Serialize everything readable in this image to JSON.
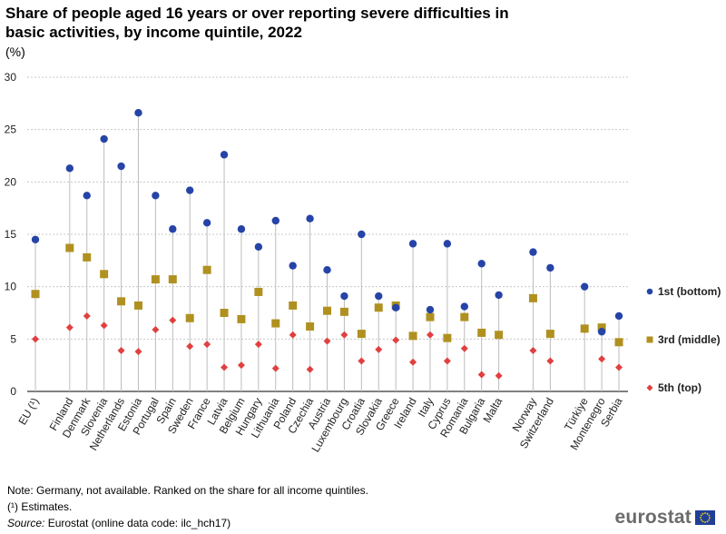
{
  "header": {
    "title": "Share of people aged 16 years or over reporting severe difficulties in basic activities, by income quintile, 2022",
    "unit": "(%)"
  },
  "footer": {
    "note": "Note: Germany, not available. Ranked on the share for all income quintiles.",
    "estimates": "(¹) Estimates.",
    "source_label": "Source:",
    "source_text": " Eurostat (online data code: ilc_hch17)",
    "logo": "eurostat",
    "flag_icon": "eu-flag-icon"
  },
  "chart_data": {
    "type": "scatter",
    "title": "Share of people aged 16 years or over reporting severe difficulties in basic activities, by income quintile, 2022",
    "ylabel": "(%)",
    "ylim": [
      0,
      30
    ],
    "yticks": [
      0,
      5,
      10,
      15,
      20,
      25,
      30
    ],
    "grid": true,
    "legend_position": "right",
    "categories": [
      "EU (¹)",
      "Finland",
      "Denmark",
      "Slovenia",
      "Netherlands",
      "Estonia",
      "Portugal",
      "Spain",
      "Sweden",
      "France",
      "Latvia",
      "Belgium",
      "Hungary",
      "Lithuania",
      "Poland",
      "Czechia",
      "Austria",
      "Luxembourg",
      "Croatia",
      "Slovakia",
      "Greece",
      "Ireland",
      "Italy",
      "Cyprus",
      "Romania",
      "Bulgaria",
      "Malta",
      "Norway",
      "Switzerland",
      "Türkiye",
      "Montenegro",
      "Serbia"
    ],
    "groups": [
      1,
      2,
      2,
      2,
      2,
      2,
      2,
      2,
      2,
      2,
      2,
      2,
      2,
      2,
      2,
      2,
      2,
      2,
      2,
      2,
      2,
      2,
      2,
      2,
      2,
      2,
      2,
      3,
      3,
      4,
      4,
      4
    ],
    "series": [
      {
        "name": "1st (bottom)",
        "color": "#2644a7",
        "marker": "circle",
        "values": [
          14.5,
          21.3,
          18.7,
          24.1,
          21.5,
          26.6,
          18.7,
          15.5,
          19.2,
          16.1,
          22.6,
          15.5,
          13.8,
          16.3,
          12.0,
          16.5,
          11.6,
          9.1,
          15.0,
          9.1,
          8.0,
          14.1,
          7.8,
          14.1,
          8.1,
          12.2,
          9.2,
          13.3,
          11.8,
          10.0,
          5.7,
          7.2
        ]
      },
      {
        "name": "3rd (middle)",
        "color": "#b09120",
        "marker": "square",
        "values": [
          9.3,
          13.7,
          12.8,
          11.2,
          8.6,
          8.2,
          10.7,
          10.7,
          7.0,
          11.6,
          7.5,
          6.9,
          9.5,
          6.5,
          8.2,
          6.2,
          7.7,
          7.6,
          5.5,
          8.0,
          8.2,
          5.3,
          7.1,
          5.1,
          7.1,
          5.6,
          5.4,
          8.9,
          5.5,
          6.0,
          6.1,
          4.7
        ]
      },
      {
        "name": "5th (top)",
        "color": "#e04040",
        "marker": "diamond",
        "values": [
          5.0,
          6.1,
          7.2,
          6.3,
          3.9,
          3.8,
          5.9,
          6.8,
          4.3,
          4.5,
          2.3,
          2.5,
          4.5,
          2.2,
          5.4,
          2.1,
          4.8,
          5.4,
          2.9,
          4.0,
          4.9,
          2.8,
          5.4,
          2.9,
          4.1,
          1.6,
          1.5,
          3.9,
          2.9,
          5.9,
          3.1,
          2.3
        ]
      }
    ]
  }
}
